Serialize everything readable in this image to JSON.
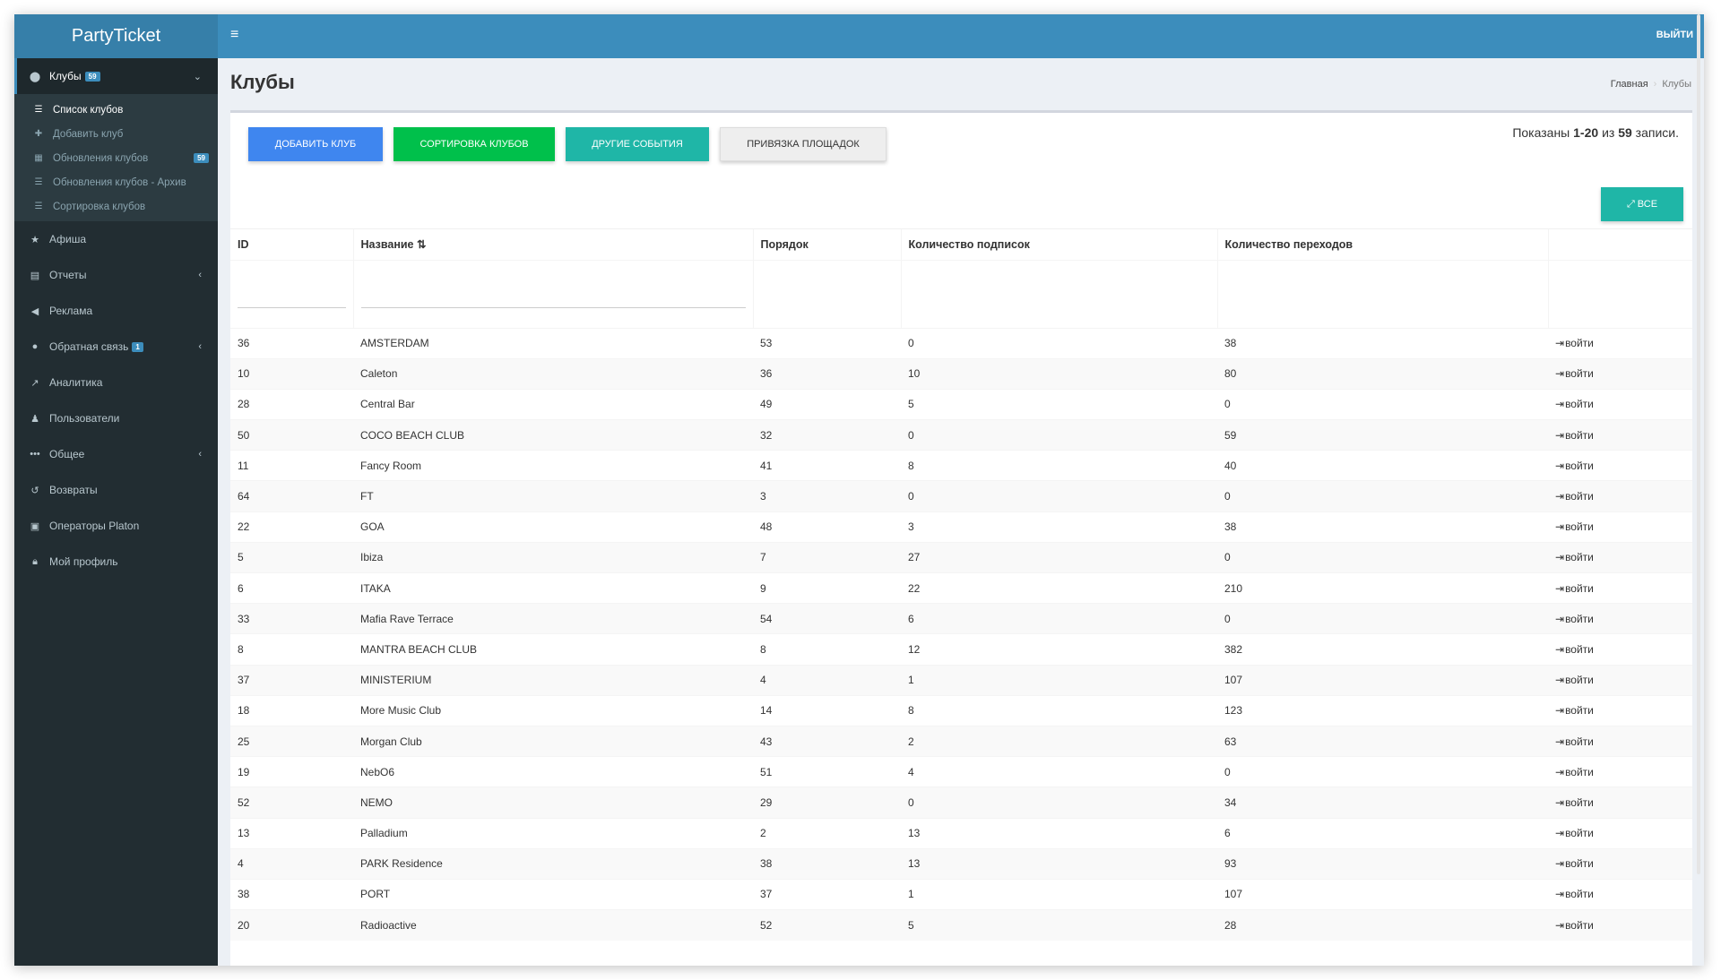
{
  "app": {
    "title": "PartyTicket"
  },
  "topbar": {
    "menu_icon": "hamburger-icon",
    "logout_label": "ВЫЙТИ"
  },
  "sidebar": {
    "items": [
      {
        "label": "Клубы",
        "icon": "map-pin-icon",
        "badge": "59",
        "active": true
      },
      {
        "label": "Афиша",
        "icon": "star-icon"
      },
      {
        "label": "Отчеты",
        "icon": "table-icon"
      },
      {
        "label": "Реклама",
        "icon": "megaphone-icon"
      },
      {
        "label": "Обратная связь",
        "icon": "comment-icon",
        "badge": "1"
      },
      {
        "label": "Аналитика",
        "icon": "chart-icon"
      },
      {
        "label": "Пользователи",
        "icon": "users-icon"
      },
      {
        "label": "Общее",
        "icon": "dots-icon"
      },
      {
        "label": "Возвраты",
        "icon": "undo-icon"
      },
      {
        "label": "Операторы Platon",
        "icon": "id-card-icon"
      },
      {
        "label": "Мой профиль",
        "icon": "lock-icon"
      }
    ],
    "clubs_submenu": [
      {
        "label": "Список клубов",
        "icon": "list-icon",
        "current": true
      },
      {
        "label": "Добавить клуб",
        "icon": "plus-icon"
      },
      {
        "label": "Обновления клубов",
        "icon": "calendar-icon",
        "badge": "59"
      },
      {
        "label": "Обновления клубов - Архив",
        "icon": "list-icon"
      },
      {
        "label": "Сортировка клубов",
        "icon": "list-icon"
      }
    ]
  },
  "page": {
    "title": "Клубы"
  },
  "breadcrumb": {
    "home": "Главная",
    "current": "Клубы"
  },
  "toolbar": {
    "add_club": "ДОБАВИТЬ КЛУБ",
    "sort_clubs": "СОРТИРОВКА КЛУБОВ",
    "other_events": "ДРУГИЕ СОБЫТИЯ",
    "bind_venues": "ПРИВЯЗКА ПЛОЩАДОК",
    "all_button": "ВСЕ"
  },
  "summary": {
    "prefix": "Показаны",
    "range": "1-20",
    "mid": "из",
    "total": "59",
    "suffix": "записи."
  },
  "table": {
    "headers": {
      "id": "ID",
      "name": "Название",
      "order": "Порядок",
      "subscriptions": "Количество подписок",
      "visits": "Количество переходов"
    },
    "login_label": "войти",
    "rows": [
      {
        "id": "36",
        "name": "AMSTERDAM",
        "order": "53",
        "subs": "0",
        "visits": "38"
      },
      {
        "id": "10",
        "name": "Caleton",
        "order": "36",
        "subs": "10",
        "visits": "80"
      },
      {
        "id": "28",
        "name": "Central Bar",
        "order": "49",
        "subs": "5",
        "visits": "0"
      },
      {
        "id": "50",
        "name": "COCO BEACH CLUB",
        "order": "32",
        "subs": "0",
        "visits": "59"
      },
      {
        "id": "11",
        "name": "Fancy Room",
        "order": "41",
        "subs": "8",
        "visits": "40"
      },
      {
        "id": "64",
        "name": "FT",
        "order": "3",
        "subs": "0",
        "visits": "0"
      },
      {
        "id": "22",
        "name": "GOA",
        "order": "48",
        "subs": "3",
        "visits": "38"
      },
      {
        "id": "5",
        "name": "Ibiza",
        "order": "7",
        "subs": "27",
        "visits": "0"
      },
      {
        "id": "6",
        "name": "ITAKA",
        "order": "9",
        "subs": "22",
        "visits": "210"
      },
      {
        "id": "33",
        "name": "Mafia Rave Terrace",
        "order": "54",
        "subs": "6",
        "visits": "0"
      },
      {
        "id": "8",
        "name": "MANTRA BEACH CLUB",
        "order": "8",
        "subs": "12",
        "visits": "382"
      },
      {
        "id": "37",
        "name": "MINISTERIUM",
        "order": "4",
        "subs": "1",
        "visits": "107"
      },
      {
        "id": "18",
        "name": "More Music Club",
        "order": "14",
        "subs": "8",
        "visits": "123"
      },
      {
        "id": "25",
        "name": "Morgan Club",
        "order": "43",
        "subs": "2",
        "visits": "63"
      },
      {
        "id": "19",
        "name": "NebO6",
        "order": "51",
        "subs": "4",
        "visits": "0"
      },
      {
        "id": "52",
        "name": "NEMO",
        "order": "29",
        "subs": "0",
        "visits": "34"
      },
      {
        "id": "13",
        "name": "Palladium",
        "order": "2",
        "subs": "13",
        "visits": "6"
      },
      {
        "id": "4",
        "name": "PARK Residence",
        "order": "38",
        "subs": "13",
        "visits": "93"
      },
      {
        "id": "38",
        "name": "PORT",
        "order": "37",
        "subs": "1",
        "visits": "107"
      },
      {
        "id": "20",
        "name": "Radioactive",
        "order": "52",
        "subs": "5",
        "visits": "28"
      }
    ]
  }
}
